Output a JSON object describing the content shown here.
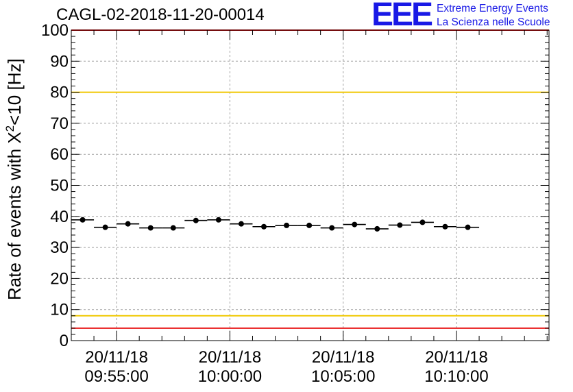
{
  "header": {
    "run_title": "CAGL-02-2018-11-20-00014",
    "logo_mark": "EEE",
    "logo_line1": "Extreme Energy Events",
    "logo_line2": "La Scienza nelle Scuole"
  },
  "colors": {
    "red_limit": "#e8191a",
    "yellow_limit": "#f0c800",
    "logo_blue": "#1919e6",
    "grid": "#a0a0a0"
  },
  "chart_data": {
    "type": "scatter",
    "title": "CAGL-02-2018-11-20-00014",
    "ylabel_main": "Rate of events with X",
    "ylabel_sup": "2",
    "ylabel_tail": "<10 [Hz]",
    "xlabel": "",
    "ylim": [
      0,
      100
    ],
    "yticks": [
      0,
      10,
      20,
      30,
      40,
      50,
      60,
      70,
      80,
      90,
      100
    ],
    "xlim_seconds": [
      -120,
      1145
    ],
    "xticks": [
      {
        "t": 0,
        "date": "20/11/18",
        "time": "09:55:00"
      },
      {
        "t": 300,
        "date": "20/11/18",
        "time": "10:00:00"
      },
      {
        "t": 600,
        "date": "20/11/18",
        "time": "10:05:00"
      },
      {
        "t": 900,
        "date": "20/11/18",
        "time": "10:10:00"
      }
    ],
    "bin_width_seconds": 60,
    "x_start_seconds": -120,
    "grid": true,
    "reference_lines": [
      {
        "name": "upper-yellow",
        "y": 80,
        "color": "yellow"
      },
      {
        "name": "lower-yellow",
        "y": 8,
        "color": "yellow"
      },
      {
        "name": "lower-red",
        "y": 4,
        "color": "red"
      },
      {
        "name": "upper-red",
        "y": 100,
        "color": "red"
      }
    ],
    "series": [
      {
        "name": "rate",
        "values": [
          38.9,
          36.5,
          37.6,
          36.3,
          36.3,
          38.7,
          38.9,
          37.6,
          36.7,
          37.1,
          37.1,
          36.3,
          37.4,
          36.0,
          37.2,
          38.1,
          36.7,
          36.5
        ]
      }
    ]
  }
}
